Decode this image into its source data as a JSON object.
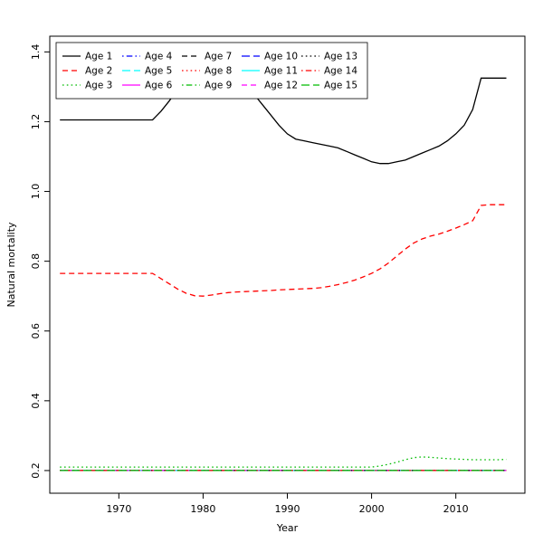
{
  "chart_data": {
    "type": "line",
    "title": "",
    "xlabel": "Year",
    "ylabel": "Natural mortality",
    "xlim": [
      1961.8,
      2018.2
    ],
    "ylim": [
      0.135,
      1.445
    ],
    "xticks": [
      1970,
      1980,
      1990,
      2000,
      2010
    ],
    "yticks": [
      0.2,
      0.4,
      0.6,
      0.8,
      1.0,
      1.2,
      1.4
    ],
    "grid": false,
    "legend": {
      "position": "top-left",
      "ncol": 5
    },
    "colors": {
      "black": "#000000",
      "red": "#ff0000",
      "green": "#00bb00",
      "blue": "#0000ff",
      "cyan": "#00ffff",
      "magenta": "#ff00ff"
    },
    "years": [
      1963,
      1964,
      1965,
      1966,
      1967,
      1968,
      1969,
      1970,
      1971,
      1972,
      1973,
      1974,
      1975,
      1976,
      1977,
      1978,
      1979,
      1980,
      1981,
      1982,
      1983,
      1984,
      1985,
      1986,
      1987,
      1988,
      1989,
      1990,
      1991,
      1992,
      1993,
      1994,
      1995,
      1996,
      1997,
      1998,
      1999,
      2000,
      2001,
      2002,
      2003,
      2004,
      2005,
      2006,
      2007,
      2008,
      2009,
      2010,
      2011,
      2012,
      2013,
      2014,
      2015,
      2016
    ],
    "series": [
      {
        "name": "Age 1",
        "color": "#000000",
        "dash": "solid",
        "values": [
          1.205,
          1.205,
          1.205,
          1.205,
          1.205,
          1.205,
          1.205,
          1.205,
          1.205,
          1.205,
          1.205,
          1.205,
          1.23,
          1.26,
          1.295,
          1.32,
          1.34,
          1.35,
          1.355,
          1.355,
          1.35,
          1.335,
          1.31,
          1.28,
          1.25,
          1.22,
          1.19,
          1.165,
          1.15,
          1.145,
          1.14,
          1.135,
          1.13,
          1.125,
          1.115,
          1.105,
          1.095,
          1.085,
          1.08,
          1.08,
          1.085,
          1.09,
          1.1,
          1.11,
          1.12,
          1.13,
          1.145,
          1.165,
          1.19,
          1.235,
          1.325,
          1.325,
          1.325,
          1.325
        ]
      },
      {
        "name": "Age 2",
        "color": "#ff0000",
        "dash": "dashed",
        "values": [
          0.765,
          0.765,
          0.765,
          0.765,
          0.765,
          0.765,
          0.765,
          0.765,
          0.765,
          0.765,
          0.765,
          0.765,
          0.75,
          0.735,
          0.72,
          0.708,
          0.701,
          0.7,
          0.703,
          0.707,
          0.71,
          0.712,
          0.713,
          0.714,
          0.715,
          0.716,
          0.718,
          0.719,
          0.72,
          0.721,
          0.722,
          0.724,
          0.728,
          0.733,
          0.739,
          0.746,
          0.755,
          0.765,
          0.778,
          0.795,
          0.815,
          0.835,
          0.852,
          0.864,
          0.872,
          0.878,
          0.886,
          0.895,
          0.905,
          0.916,
          0.96,
          0.962,
          0.962,
          0.962
        ]
      },
      {
        "name": "Age 3",
        "color": "#00bb00",
        "dash": "dotted",
        "values": [
          0.21,
          0.21,
          0.21,
          0.21,
          0.21,
          0.21,
          0.21,
          0.21,
          0.21,
          0.21,
          0.21,
          0.21,
          0.21,
          0.21,
          0.21,
          0.21,
          0.21,
          0.21,
          0.21,
          0.21,
          0.21,
          0.21,
          0.21,
          0.21,
          0.21,
          0.21,
          0.21,
          0.21,
          0.21,
          0.21,
          0.21,
          0.21,
          0.21,
          0.21,
          0.21,
          0.21,
          0.21,
          0.21,
          0.213,
          0.218,
          0.224,
          0.231,
          0.237,
          0.239,
          0.238,
          0.236,
          0.234,
          0.233,
          0.232,
          0.231,
          0.231,
          0.231,
          0.231,
          0.232
        ]
      },
      {
        "name": "Age 4",
        "color": "#0000ff",
        "dash": "dotdash",
        "value": 0.2
      },
      {
        "name": "Age 5",
        "color": "#00ffff",
        "dash": "longdash",
        "value": 0.2
      },
      {
        "name": "Age 6",
        "color": "#ff00ff",
        "dash": "solid",
        "value": 0.2
      },
      {
        "name": "Age 7",
        "color": "#000000",
        "dash": "dashed",
        "value": 0.2
      },
      {
        "name": "Age 8",
        "color": "#ff0000",
        "dash": "dotted",
        "value": 0.2
      },
      {
        "name": "Age 9",
        "color": "#00bb00",
        "dash": "dotdash",
        "value": 0.2
      },
      {
        "name": "Age 10",
        "color": "#0000ff",
        "dash": "longdash",
        "value": 0.2
      },
      {
        "name": "Age 11",
        "color": "#00ffff",
        "dash": "solid",
        "value": 0.2
      },
      {
        "name": "Age 12",
        "color": "#ff00ff",
        "dash": "dashed",
        "value": 0.2
      },
      {
        "name": "Age 13",
        "color": "#000000",
        "dash": "dotted",
        "value": 0.2
      },
      {
        "name": "Age 14",
        "color": "#ff0000",
        "dash": "dotdash",
        "value": 0.2
      },
      {
        "name": "Age 15",
        "color": "#00bb00",
        "dash": "longdash",
        "value": 0.2
      }
    ]
  }
}
